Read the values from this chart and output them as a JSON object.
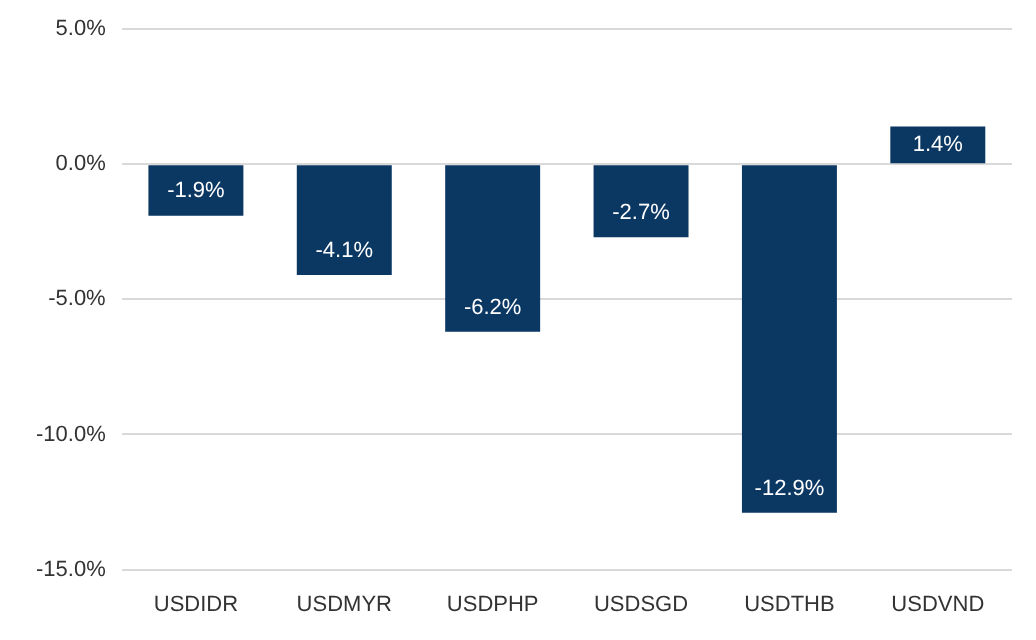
{
  "chart_data": {
    "type": "bar",
    "categories": [
      "USDIDR",
      "USDMYR",
      "USDPHP",
      "USDSGD",
      "USDTHB",
      "USDVND"
    ],
    "values": [
      -1.9,
      -4.1,
      -6.2,
      -2.7,
      -12.9,
      1.4
    ],
    "value_labels": [
      "-1.9%",
      "-4.1%",
      "-6.2%",
      "-2.7%",
      "-12.9%",
      "1.4%"
    ],
    "color": "#0b3763",
    "ylim": [
      -15,
      5
    ],
    "yticks": [
      {
        "value": -15,
        "label": "-15.0%"
      },
      {
        "value": -10,
        "label": "-10.0%"
      },
      {
        "value": -5,
        "label": "-5.0%"
      },
      {
        "value": 0,
        "label": "0.0%"
      },
      {
        "value": 5,
        "label": "5.0%"
      }
    ],
    "grid": "y",
    "legend": false
  }
}
